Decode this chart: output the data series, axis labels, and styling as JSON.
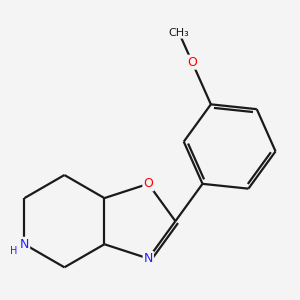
{
  "background_color": "#f4f4f4",
  "bond_color": "#1a1a1a",
  "bond_width": 1.6,
  "atom_colors": {
    "O": "#ff0000",
    "N": "#2020ff",
    "NH": "#2020ff",
    "C": "#1a1a1a"
  },
  "figsize": [
    3.0,
    3.0
  ],
  "dpi": 100
}
